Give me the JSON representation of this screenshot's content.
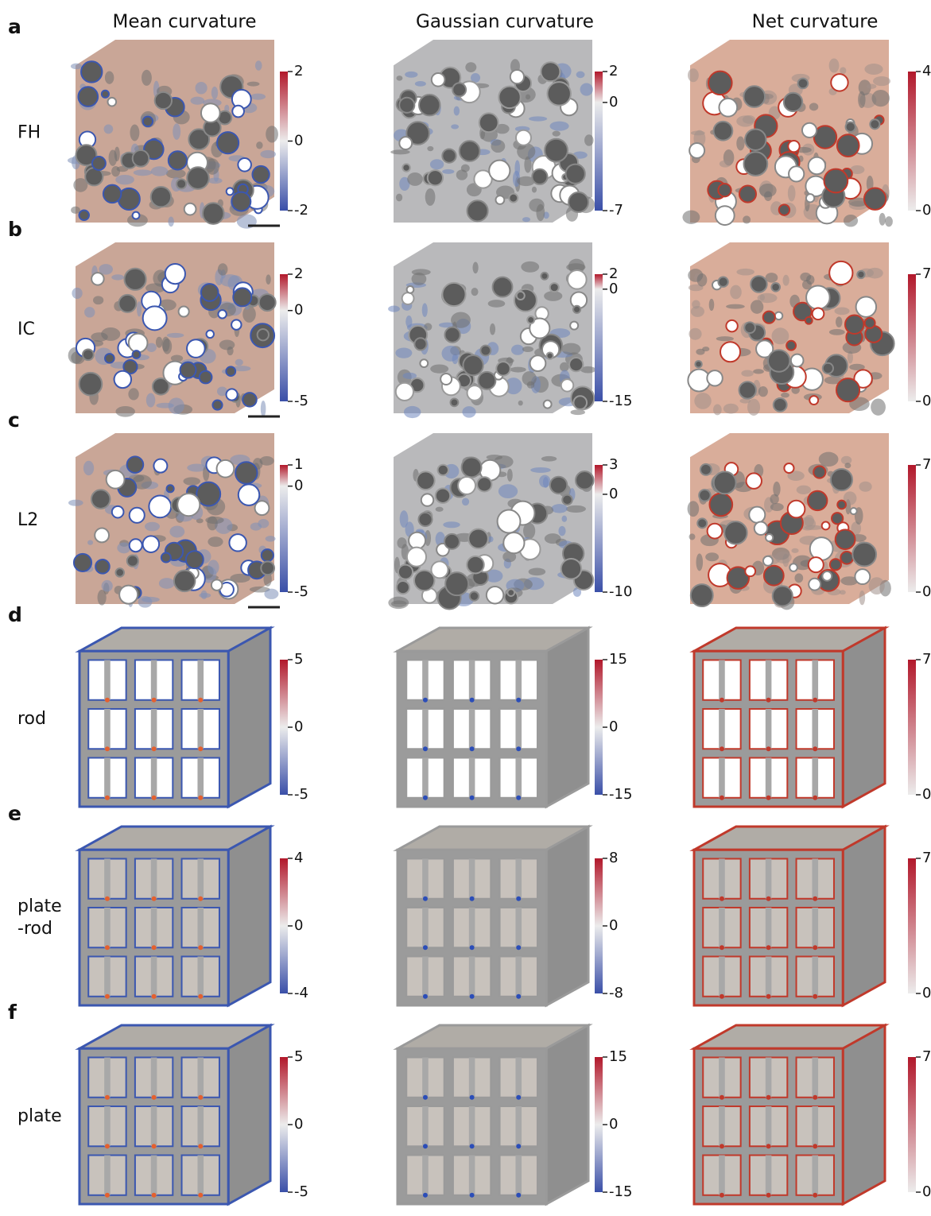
{
  "column_titles": [
    "Mean curvature",
    "Gaussian curvature",
    "Net curvature"
  ],
  "rows": [
    {
      "panel": "a",
      "label": [
        "FH"
      ],
      "colorbars": [
        {
          "range": [
            -2,
            2
          ],
          "ticks": [
            2,
            0,
            -2
          ]
        },
        {
          "range": [
            -7,
            2
          ],
          "ticks": [
            2,
            0,
            -7
          ]
        },
        {
          "range": [
            0,
            4
          ],
          "ticks": [
            4,
            0
          ]
        }
      ]
    },
    {
      "panel": "b",
      "label": [
        "IC"
      ],
      "colorbars": [
        {
          "range": [
            -5,
            2
          ],
          "ticks": [
            2,
            0,
            -5
          ]
        },
        {
          "range": [
            -15,
            2
          ],
          "ticks": [
            2,
            0,
            -15
          ]
        },
        {
          "range": [
            0,
            7
          ],
          "ticks": [
            7,
            0
          ]
        }
      ]
    },
    {
      "panel": "c",
      "label": [
        "L2"
      ],
      "colorbars": [
        {
          "range": [
            -5,
            1
          ],
          "ticks": [
            1,
            0,
            -5
          ]
        },
        {
          "range": [
            -10,
            3
          ],
          "ticks": [
            3,
            0,
            -10
          ]
        },
        {
          "range": [
            0,
            7
          ],
          "ticks": [
            7,
            0
          ]
        }
      ]
    },
    {
      "panel": "d",
      "label": [
        "rod"
      ],
      "colorbars": [
        {
          "range": [
            -5,
            5
          ],
          "ticks": [
            5,
            0,
            -5
          ]
        },
        {
          "range": [
            -15,
            15
          ],
          "ticks": [
            15,
            0,
            -15
          ]
        },
        {
          "range": [
            0,
            7
          ],
          "ticks": [
            7,
            0
          ]
        }
      ]
    },
    {
      "panel": "e",
      "label": [
        "plate",
        "-rod"
      ],
      "colorbars": [
        {
          "range": [
            -4,
            4
          ],
          "ticks": [
            4,
            0,
            -4
          ]
        },
        {
          "range": [
            -8,
            8
          ],
          "ticks": [
            8,
            0,
            -8
          ]
        },
        {
          "range": [
            0,
            7
          ],
          "ticks": [
            7,
            0
          ]
        }
      ]
    },
    {
      "panel": "f",
      "label": [
        "plate"
      ],
      "colorbars": [
        {
          "range": [
            -5,
            5
          ],
          "ticks": [
            5,
            0,
            -5
          ]
        },
        {
          "range": [
            -15,
            15
          ],
          "ticks": [
            15,
            0,
            -15
          ]
        },
        {
          "range": [
            0,
            7
          ],
          "ticks": [
            7,
            0
          ]
        }
      ]
    }
  ]
}
